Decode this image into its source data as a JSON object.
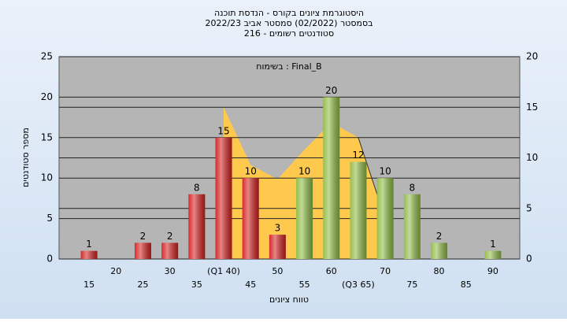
{
  "chart_data": {
    "type": "bar",
    "title": "היסטוגרמת ציונים בקורס - הנדסת תוכנה",
    "subtitle": "בסמסטר  (02/2022)  סמסטר אביב 2022/23",
    "subtitle2": "216 - סטודנטים רשומים",
    "annotation": "בשימוח : Final_B",
    "xlabel": "טווח ציונים",
    "ylabel": "מספר סטודנטים",
    "categories": [
      "15",
      "20",
      "25",
      "30",
      "35",
      "(Q1 40)",
      "45",
      "50",
      "55",
      "60",
      "(Q3 65)",
      "70",
      "75",
      "80",
      "85",
      "90"
    ],
    "values": [
      1,
      0,
      2,
      2,
      8,
      15,
      10,
      3,
      10,
      20,
      12,
      10,
      8,
      2,
      0,
      1
    ],
    "value_labels": [
      "1",
      null,
      "2",
      "2",
      "8",
      "15",
      "10",
      "3",
      "10",
      "20",
      "12",
      "10",
      "8",
      "2",
      null,
      "1"
    ],
    "colors": [
      "#d42020",
      "#d42020",
      "#d42020",
      "#d42020",
      "#d42020",
      "#d42020",
      "#d42020",
      "#d42020",
      "#8fbc45",
      "#8fbc45",
      "#8fbc45",
      "#8fbc45",
      "#8fbc45",
      "#8fbc45",
      "#8fbc45",
      "#8fbc45"
    ],
    "ylim": [
      0,
      25
    ],
    "yticks": [
      0,
      5,
      10,
      15,
      20,
      25
    ],
    "y2lim": [
      0,
      20
    ],
    "y2ticks": [
      0,
      5,
      10,
      15,
      20
    ],
    "area": {
      "type": "area",
      "axis": "y2",
      "color": "#ffc94d",
      "values": [
        null,
        null,
        null,
        null,
        null,
        15,
        9.3,
        7.9,
        10.8,
        13.5,
        12,
        4,
        null,
        null,
        null,
        null
      ]
    },
    "grid": true
  }
}
